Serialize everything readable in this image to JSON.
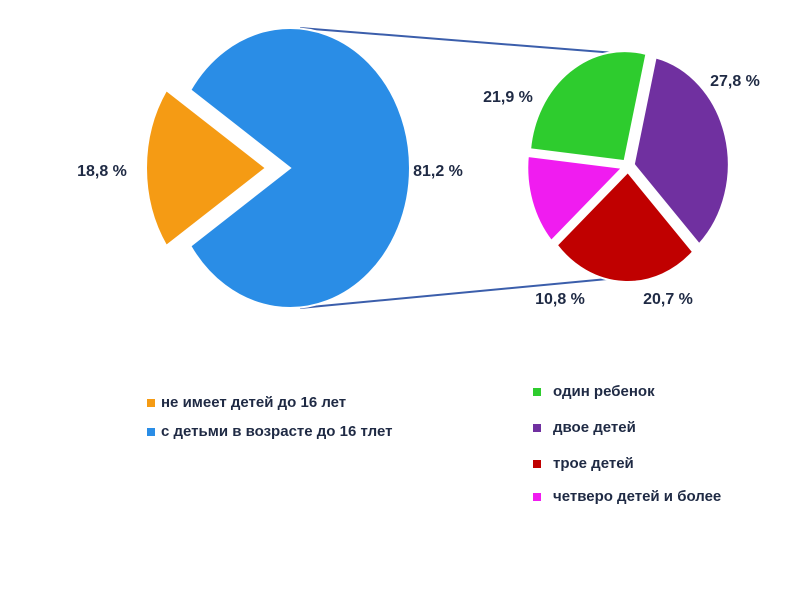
{
  "chart_data": [
    {
      "type": "pie",
      "categories": [
        "не имеет детей до 16 лет",
        "с детьми в возрасте до 16 тлет"
      ],
      "values": [
        18.8,
        81.2
      ],
      "value_labels": [
        "18,8 %",
        "81,2 %"
      ],
      "colors": [
        "#f59b14",
        "#2a8de6"
      ]
    },
    {
      "type": "pie",
      "categories": [
        "один ребенок",
        "двое детей",
        "трое детей",
        "четверо детей и более"
      ],
      "values": [
        21.9,
        27.8,
        20.7,
        10.8
      ],
      "value_labels": [
        "21,9 %",
        "27,8 %",
        "20,7 %",
        "10,8 %"
      ],
      "colors": [
        "#2ecc2e",
        "#7030a0",
        "#c00000",
        "#f01cf0"
      ]
    }
  ]
}
